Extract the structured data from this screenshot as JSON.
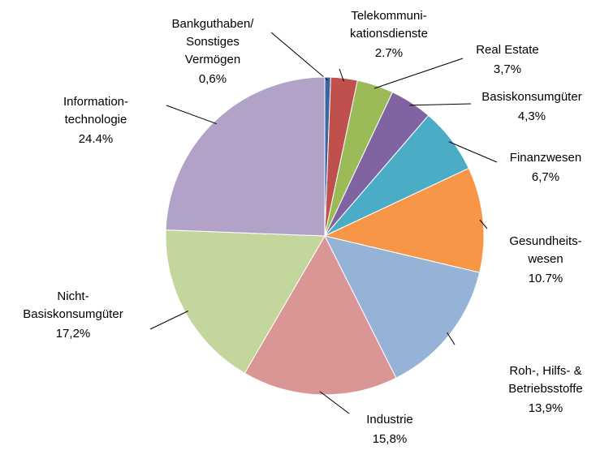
{
  "chart_data": {
    "type": "pie",
    "categories": [
      "Bankguthaben/\nSonstiges\nVermögen",
      "Telekommuni-\nkationsdienste",
      "Real Estate",
      "Basiskonsumgüter",
      "Finanzwesen",
      "Gesundheits-\nwesen",
      "Roh-, Hilfs- &\nBetriebsstoffe",
      "Industrie",
      "Nicht-\nBasiskonsumgüter",
      "Information-\ntechnologie"
    ],
    "values": [
      0.6,
      2.7,
      3.7,
      4.3,
      6.7,
      10.7,
      13.9,
      15.8,
      17.2,
      24.4
    ],
    "value_labels": [
      "0,6%",
      "2.7%",
      "3,7%",
      "4,3%",
      "6,7%",
      "10.7%",
      "13,9%",
      "15,8%",
      "17,2%",
      "24.4%"
    ],
    "colors": [
      "#3c64a0",
      "#c0504d",
      "#9bbb59",
      "#8064a2",
      "#4bacc6",
      "#f79646",
      "#95b3d7",
      "#d99694",
      "#c3d69b",
      "#b3a2c7"
    ]
  }
}
